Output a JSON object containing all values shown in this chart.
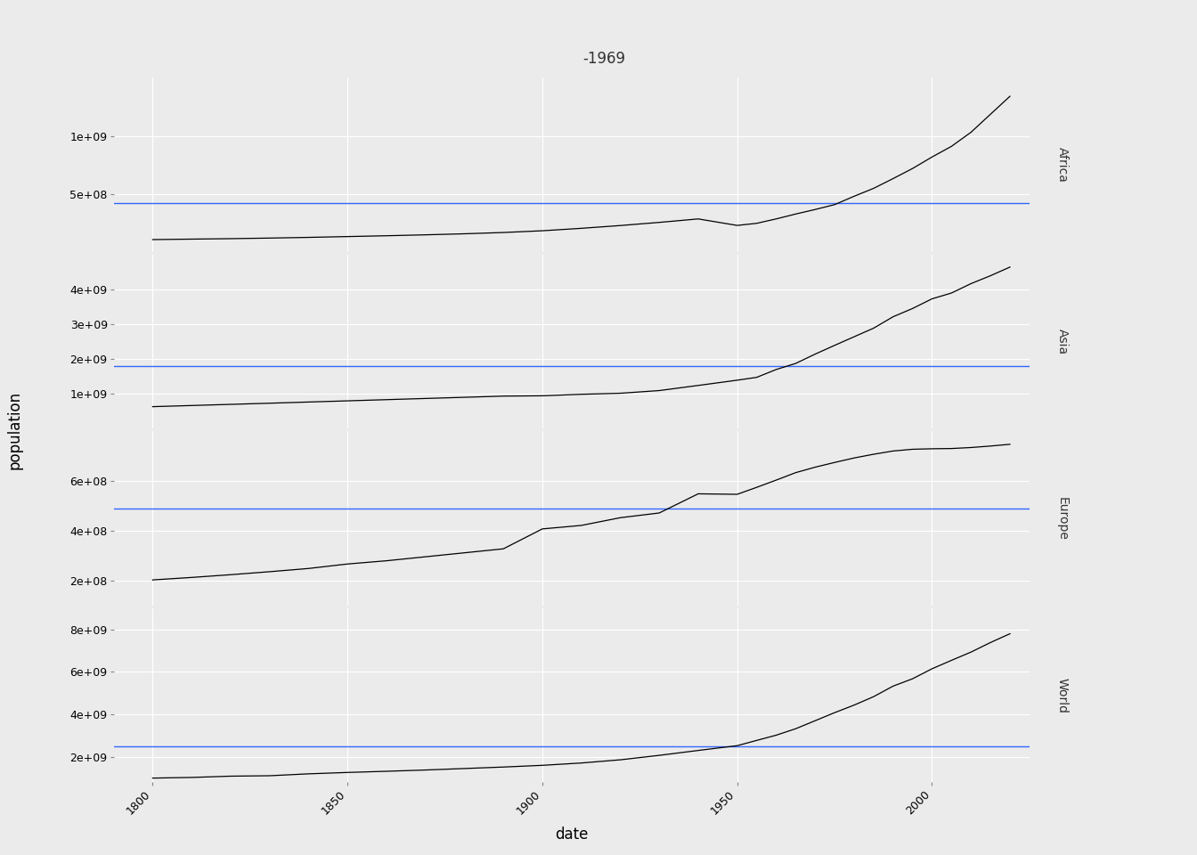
{
  "title": "-1969",
  "xlabel": "date",
  "ylabel": "population",
  "regions": [
    "Africa",
    "Asia",
    "Europe",
    "World"
  ],
  "years": [
    1800,
    1810,
    1820,
    1830,
    1840,
    1850,
    1860,
    1870,
    1880,
    1890,
    1900,
    1910,
    1920,
    1930,
    1940,
    1950,
    1955,
    1960,
    1965,
    1970,
    1975,
    1980,
    1985,
    1990,
    1995,
    2000,
    2005,
    2010,
    2015,
    2020
  ],
  "africa_pop": [
    107,
    111,
    115,
    120,
    126,
    133,
    140,
    148,
    157,
    168,
    183,
    204,
    228,
    255,
    285,
    229,
    247,
    285,
    327,
    366,
    408,
    480,
    548,
    632,
    719,
    818,
    910,
    1031,
    1186,
    1341
  ],
  "asia_pop": [
    635,
    668,
    701,
    734,
    768,
    802,
    836,
    870,
    904,
    938,
    947,
    990,
    1020,
    1097,
    1244,
    1395,
    1476,
    1701,
    1875,
    2143,
    2394,
    2641,
    2887,
    3215,
    3452,
    3730,
    3897,
    4166,
    4393,
    4641
  ],
  "europe_pop": [
    203,
    213,
    224,
    236,
    249,
    267,
    280,
    296,
    312,
    328,
    408,
    422,
    453,
    472,
    549,
    547,
    575,
    604,
    634,
    656,
    675,
    693,
    708,
    721,
    728,
    730,
    731,
    735,
    741,
    748
  ],
  "world_pop": [
    1000,
    1030,
    1090,
    1110,
    1200,
    1265,
    1320,
    1380,
    1450,
    1520,
    1600,
    1710,
    1860,
    2070,
    2300,
    2525,
    2773,
    3018,
    3322,
    3700,
    4079,
    4435,
    4831,
    5327,
    5674,
    6145,
    6542,
    6930,
    7380,
    7795
  ],
  "africa_mean": 420,
  "asia_mean": 1800,
  "europe_mean": 490,
  "world_mean": 2500,
  "africa_ylim": [
    0,
    1500
  ],
  "asia_ylim": [
    0,
    5000
  ],
  "europe_ylim": [
    100,
    800
  ],
  "world_ylim": [
    800,
    9000
  ],
  "africa_yticks": [
    500,
    1000
  ],
  "asia_yticks": [
    1000,
    2000,
    3000,
    4000
  ],
  "europe_yticks": [
    200,
    400,
    600
  ],
  "world_yticks": [
    2000,
    4000,
    6000,
    8000
  ],
  "xticks": [
    1800,
    1850,
    1900,
    1950,
    2000
  ],
  "xlim": [
    1790,
    2025
  ],
  "line_color": "#000000",
  "mean_color": "#3366FF",
  "bg_panel": "#EBEBEB",
  "bg_strip": "#D3D3D3",
  "bg_figure": "#EBEBEB",
  "grid_color": "#FFFFFF",
  "title_fontsize": 12,
  "axis_label_fontsize": 12,
  "tick_fontsize": 9,
  "strip_fontsize": 10
}
